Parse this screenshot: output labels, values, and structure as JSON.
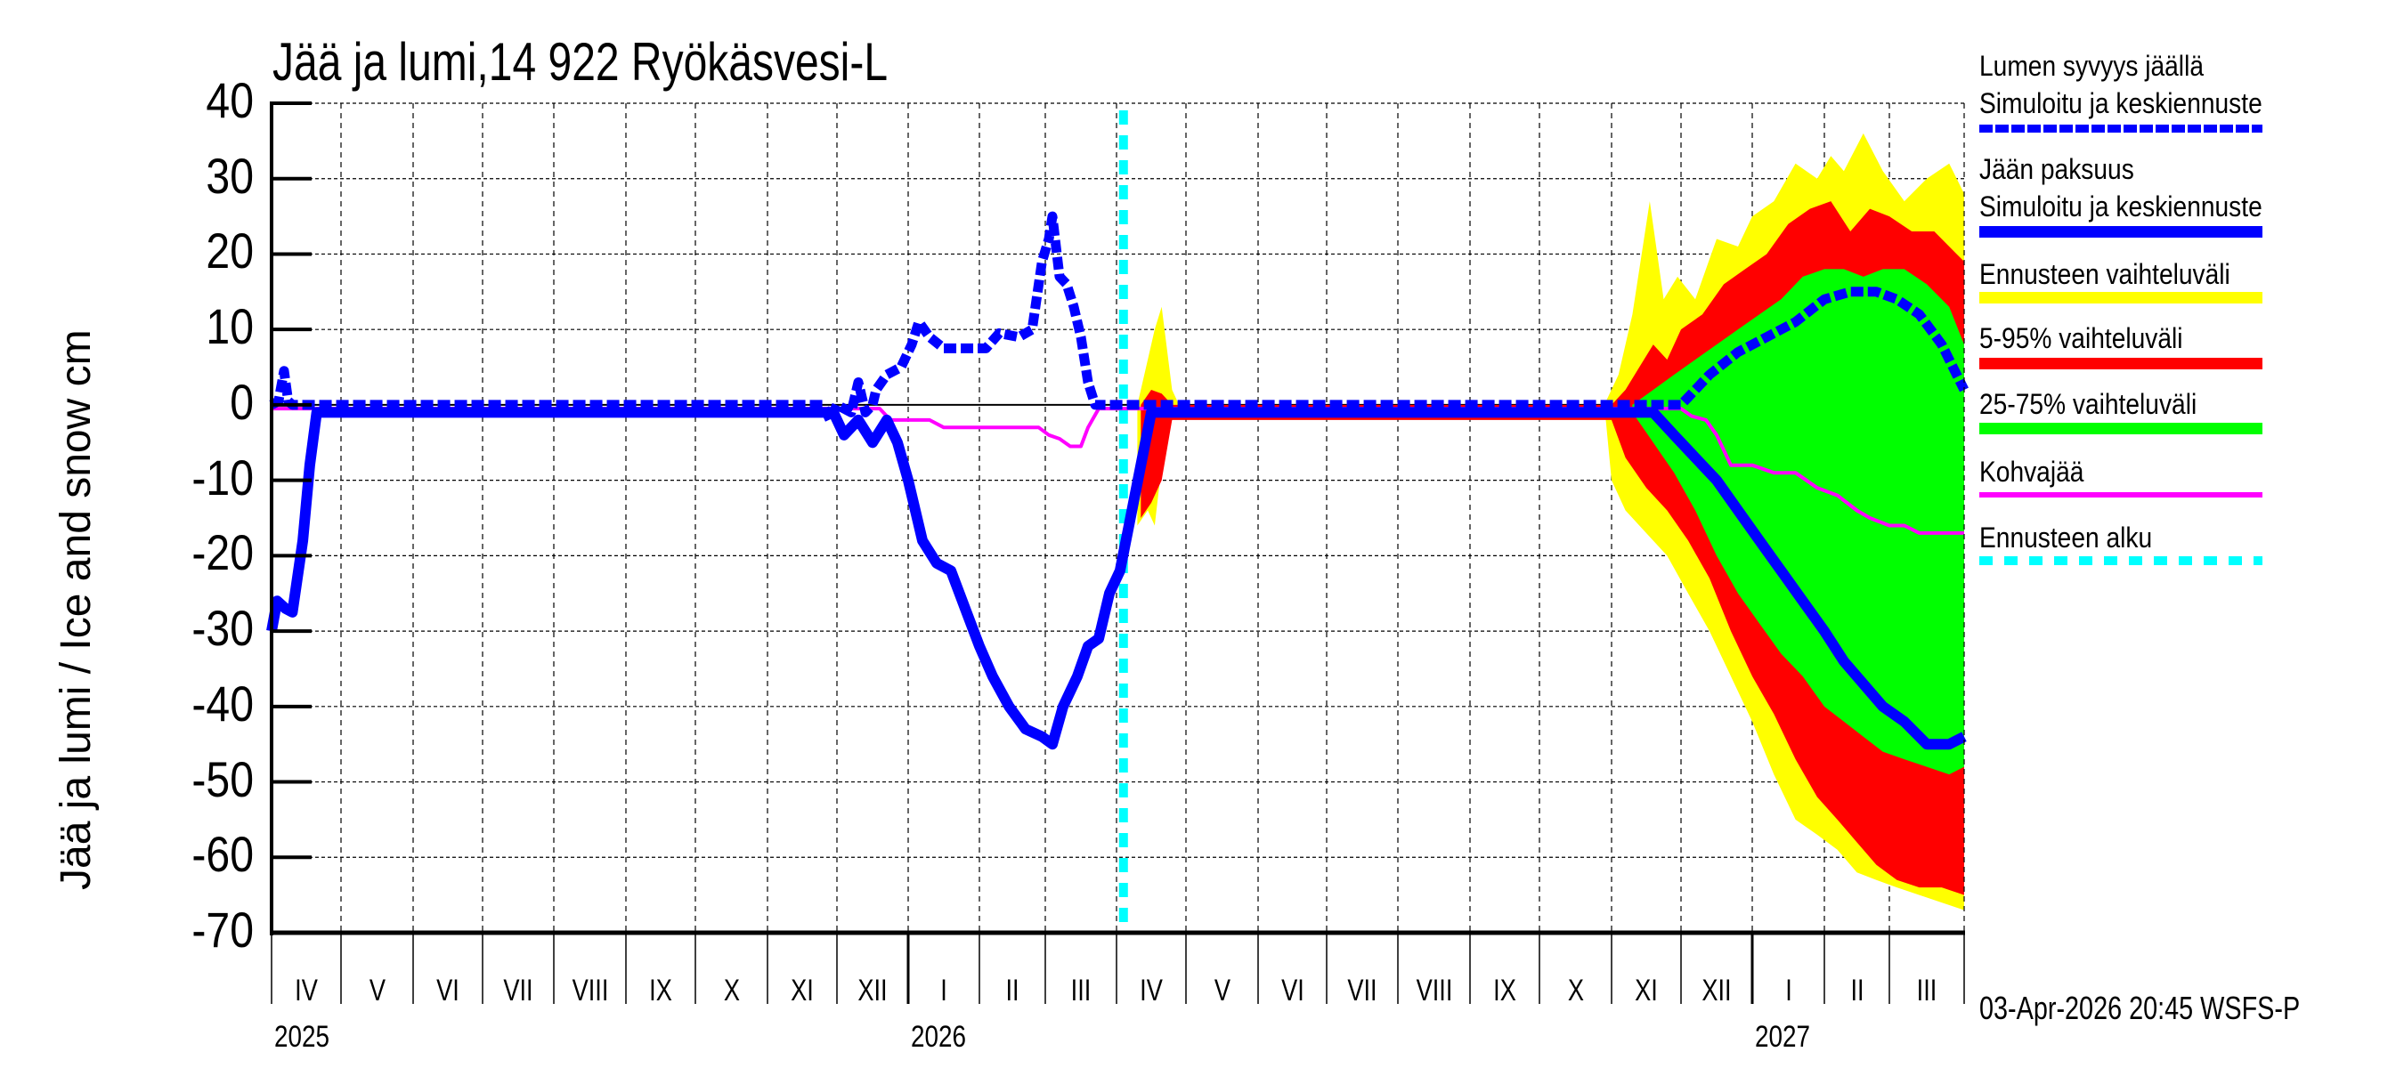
{
  "chart_data": {
    "type": "line",
    "title": "Jää ja lumi,14 922 Ryökäsvesi-L",
    "xlabel": "",
    "ylabel": "Jää ja lumi / Ice and snow    cm",
    "ylim": [
      -70,
      40
    ],
    "yticks": [
      40,
      30,
      20,
      10,
      0,
      -10,
      -20,
      -30,
      -40,
      -50,
      -60,
      -70
    ],
    "grid": true,
    "x_unit": "months since 1-Apr-2025",
    "xlim": [
      0,
      24
    ],
    "month_labels": [
      "IV",
      "V",
      "VI",
      "VII",
      "VIII",
      "IX",
      "X",
      "XI",
      "XII",
      "I",
      "II",
      "III",
      "IV",
      "V",
      "VI",
      "VII",
      "VIII",
      "IX",
      "X",
      "XI",
      "XII",
      "I",
      "II",
      "III"
    ],
    "year_labels": [
      {
        "label": "2025",
        "month_index": 0
      },
      {
        "label": "2026",
        "month_index": 9
      },
      {
        "label": "2027",
        "month_index": 21
      }
    ],
    "forecast_start": 12.1,
    "series": [
      {
        "name": "Lumen syvyys jäällä — Simuloitu ja keskiennuste",
        "key": "snow",
        "color": "#0000ff",
        "style": "dashed",
        "points": [
          [
            0,
            0
          ],
          [
            0.1,
            0.5
          ],
          [
            0.18,
            4.5
          ],
          [
            0.24,
            0.5
          ],
          [
            0.3,
            0
          ],
          [
            7.8,
            0
          ],
          [
            7.9,
            -2
          ],
          [
            8.0,
            0
          ],
          [
            8.2,
            -1
          ],
          [
            8.3,
            3
          ],
          [
            8.4,
            -1
          ],
          [
            8.5,
            0
          ],
          [
            8.55,
            2
          ],
          [
            8.7,
            4
          ],
          [
            8.9,
            5
          ],
          [
            9.05,
            8
          ],
          [
            9.15,
            11
          ],
          [
            9.3,
            9
          ],
          [
            9.5,
            7.5
          ],
          [
            9.8,
            7.5
          ],
          [
            10.1,
            7.5
          ],
          [
            10.3,
            9.5
          ],
          [
            10.6,
            9
          ],
          [
            10.8,
            10
          ],
          [
            10.95,
            19
          ],
          [
            11.05,
            22
          ],
          [
            11.1,
            25
          ],
          [
            11.2,
            17
          ],
          [
            11.3,
            16
          ],
          [
            11.4,
            13
          ],
          [
            11.5,
            9
          ],
          [
            11.6,
            3
          ],
          [
            11.7,
            0
          ],
          [
            18.9,
            0
          ],
          [
            19.5,
            0
          ],
          [
            20.0,
            0
          ],
          [
            20.4,
            4
          ],
          [
            20.8,
            7
          ],
          [
            21.2,
            9
          ],
          [
            21.6,
            11
          ],
          [
            22.0,
            14
          ],
          [
            22.4,
            15
          ],
          [
            22.8,
            15
          ],
          [
            23.1,
            14
          ],
          [
            23.4,
            12
          ],
          [
            23.7,
            8
          ],
          [
            23.9,
            4
          ],
          [
            24,
            2
          ]
        ]
      },
      {
        "name": "Jään paksuus — Simuloitu ja keskiennuste",
        "key": "ice",
        "color": "#0000ff",
        "style": "solid",
        "points": [
          [
            0,
            -30
          ],
          [
            0.08,
            -26
          ],
          [
            0.2,
            -27
          ],
          [
            0.3,
            -27.5
          ],
          [
            0.45,
            -18
          ],
          [
            0.55,
            -8
          ],
          [
            0.65,
            -1
          ],
          [
            7.95,
            -1
          ],
          [
            8.1,
            -4
          ],
          [
            8.3,
            -2
          ],
          [
            8.5,
            -5
          ],
          [
            8.7,
            -2
          ],
          [
            8.85,
            -5
          ],
          [
            9.0,
            -10
          ],
          [
            9.2,
            -18
          ],
          [
            9.4,
            -21
          ],
          [
            9.6,
            -22
          ],
          [
            9.8,
            -27
          ],
          [
            10.0,
            -32
          ],
          [
            10.2,
            -36
          ],
          [
            10.45,
            -40
          ],
          [
            10.7,
            -43
          ],
          [
            10.95,
            -44
          ],
          [
            11.1,
            -45
          ],
          [
            11.25,
            -40
          ],
          [
            11.45,
            -36
          ],
          [
            11.6,
            -32
          ],
          [
            11.75,
            -31
          ],
          [
            11.9,
            -25
          ],
          [
            12.05,
            -22
          ],
          [
            12.2,
            -15
          ],
          [
            12.35,
            -8
          ],
          [
            12.5,
            -1
          ],
          [
            19.6,
            -1
          ],
          [
            19.9,
            -4
          ],
          [
            20.2,
            -7
          ],
          [
            20.5,
            -10
          ],
          [
            20.8,
            -14
          ],
          [
            21.1,
            -18
          ],
          [
            21.4,
            -22
          ],
          [
            21.7,
            -26
          ],
          [
            22.0,
            -30
          ],
          [
            22.3,
            -34
          ],
          [
            22.6,
            -37
          ],
          [
            22.9,
            -40
          ],
          [
            23.2,
            -42
          ],
          [
            23.5,
            -45
          ],
          [
            23.8,
            -45
          ],
          [
            24,
            -44
          ]
        ]
      },
      {
        "name": "Kohvajää",
        "key": "slush",
        "color": "#ff00ff",
        "style": "solid",
        "points": [
          [
            0,
            -0.5
          ],
          [
            8.6,
            -0.5
          ],
          [
            8.75,
            -2
          ],
          [
            9.3,
            -2
          ],
          [
            9.5,
            -3
          ],
          [
            10.9,
            -3
          ],
          [
            11.05,
            -4
          ],
          [
            11.2,
            -4.5
          ],
          [
            11.35,
            -5.5
          ],
          [
            11.5,
            -5.5
          ],
          [
            11.6,
            -3
          ],
          [
            11.75,
            -0.5
          ],
          [
            20.0,
            -0.5
          ],
          [
            20.15,
            -1.5
          ],
          [
            20.35,
            -2
          ],
          [
            20.5,
            -4
          ],
          [
            20.7,
            -8
          ],
          [
            21.0,
            -8
          ],
          [
            21.3,
            -9
          ],
          [
            21.6,
            -9
          ],
          [
            21.9,
            -11
          ],
          [
            22.2,
            -12
          ],
          [
            22.5,
            -14
          ],
          [
            22.7,
            -15
          ],
          [
            23.0,
            -16
          ],
          [
            23.2,
            -16
          ],
          [
            23.4,
            -17
          ],
          [
            24,
            -17
          ]
        ]
      }
    ],
    "bands": [
      {
        "name": "Ennusteen vaihteluväli",
        "color": "#ffff00",
        "upper": [
          [
            12.3,
            0
          ],
          [
            12.45,
            6
          ],
          [
            12.55,
            10
          ],
          [
            12.65,
            13
          ],
          [
            12.8,
            2
          ],
          [
            12.9,
            0
          ],
          [
            18.9,
            0
          ],
          [
            19.1,
            4
          ],
          [
            19.3,
            12
          ],
          [
            19.55,
            27
          ],
          [
            19.75,
            14
          ],
          [
            19.95,
            17
          ],
          [
            20.2,
            14
          ],
          [
            20.5,
            22
          ],
          [
            20.8,
            21
          ],
          [
            21.0,
            25
          ],
          [
            21.3,
            27
          ],
          [
            21.6,
            32
          ],
          [
            21.9,
            30
          ],
          [
            22.1,
            33
          ],
          [
            22.3,
            31
          ],
          [
            22.6,
            36
          ],
          [
            22.9,
            31
          ],
          [
            23.2,
            27
          ],
          [
            23.5,
            30
          ],
          [
            23.8,
            32
          ],
          [
            24,
            28
          ]
        ],
        "lower": [
          [
            12.3,
            -16
          ],
          [
            12.45,
            -14
          ],
          [
            12.55,
            -16
          ],
          [
            12.7,
            -4
          ],
          [
            12.9,
            0
          ],
          [
            18.9,
            0
          ],
          [
            19.0,
            -10
          ],
          [
            19.2,
            -14
          ],
          [
            19.5,
            -17
          ],
          [
            19.8,
            -20
          ],
          [
            20.1,
            -25
          ],
          [
            20.4,
            -30
          ],
          [
            20.7,
            -36
          ],
          [
            21.0,
            -42
          ],
          [
            21.3,
            -49
          ],
          [
            21.6,
            -55
          ],
          [
            21.9,
            -57
          ],
          [
            22.2,
            -59
          ],
          [
            22.5,
            -62
          ],
          [
            22.8,
            -63
          ],
          [
            23.1,
            -64
          ],
          [
            23.4,
            -65
          ],
          [
            23.7,
            -66
          ],
          [
            24,
            -67
          ]
        ]
      },
      {
        "name": "5-95% vaihteluväli",
        "color": "#ff0000",
        "upper": [
          [
            12.35,
            0
          ],
          [
            12.5,
            2
          ],
          [
            12.65,
            1.5
          ],
          [
            12.8,
            0
          ],
          [
            19.0,
            0
          ],
          [
            19.2,
            2
          ],
          [
            19.4,
            5
          ],
          [
            19.6,
            8
          ],
          [
            19.8,
            6
          ],
          [
            20.0,
            10
          ],
          [
            20.3,
            12
          ],
          [
            20.6,
            16
          ],
          [
            20.9,
            18
          ],
          [
            21.2,
            20
          ],
          [
            21.5,
            24
          ],
          [
            21.8,
            26
          ],
          [
            22.1,
            27
          ],
          [
            22.4,
            23
          ],
          [
            22.7,
            26
          ],
          [
            23.0,
            25
          ],
          [
            23.3,
            23
          ],
          [
            23.6,
            23
          ],
          [
            23.9,
            20
          ],
          [
            24,
            19
          ]
        ],
        "lower": [
          [
            12.35,
            -15
          ],
          [
            12.5,
            -13
          ],
          [
            12.65,
            -10
          ],
          [
            12.8,
            -2
          ],
          [
            19.0,
            -2
          ],
          [
            19.2,
            -7
          ],
          [
            19.5,
            -11
          ],
          [
            19.8,
            -14
          ],
          [
            20.1,
            -18
          ],
          [
            20.4,
            -23
          ],
          [
            20.7,
            -30
          ],
          [
            21.0,
            -36
          ],
          [
            21.3,
            -41
          ],
          [
            21.6,
            -47
          ],
          [
            21.9,
            -52
          ],
          [
            22.2,
            -55
          ],
          [
            22.5,
            -58
          ],
          [
            22.8,
            -61
          ],
          [
            23.1,
            -63
          ],
          [
            23.4,
            -64
          ],
          [
            23.7,
            -64
          ],
          [
            24,
            -65
          ]
        ]
      },
      {
        "name": "25-75% vaihteluväli",
        "color": "#00ff00",
        "upper": [
          [
            19.3,
            0
          ],
          [
            19.6,
            2
          ],
          [
            19.9,
            4
          ],
          [
            20.2,
            6
          ],
          [
            20.5,
            8
          ],
          [
            20.8,
            10
          ],
          [
            21.1,
            12
          ],
          [
            21.4,
            14
          ],
          [
            21.7,
            17
          ],
          [
            22.0,
            18
          ],
          [
            22.3,
            18
          ],
          [
            22.6,
            17
          ],
          [
            22.9,
            18
          ],
          [
            23.2,
            18
          ],
          [
            23.5,
            16
          ],
          [
            23.8,
            13
          ],
          [
            24,
            8
          ]
        ],
        "lower": [
          [
            19.3,
            -1
          ],
          [
            19.6,
            -5
          ],
          [
            19.9,
            -9
          ],
          [
            20.2,
            -14
          ],
          [
            20.5,
            -20
          ],
          [
            20.8,
            -25
          ],
          [
            21.1,
            -29
          ],
          [
            21.4,
            -33
          ],
          [
            21.7,
            -36
          ],
          [
            22.0,
            -40
          ],
          [
            22.3,
            -42
          ],
          [
            22.6,
            -44
          ],
          [
            22.9,
            -46
          ],
          [
            23.2,
            -47
          ],
          [
            23.5,
            -48
          ],
          [
            23.8,
            -49
          ],
          [
            24,
            -48
          ]
        ]
      }
    ]
  },
  "legend": {
    "items": [
      {
        "label_1": "Lumen syvyys jäällä",
        "label_2": "Simuloitu ja keskiennuste",
        "color": "#0000ff",
        "style": "dashed"
      },
      {
        "label_1": "Jään paksuus",
        "label_2": "Simuloitu ja keskiennuste",
        "color": "#0000ff",
        "style": "solid"
      },
      {
        "label_1": "Ennusteen vaihteluväli",
        "color": "#ffff00",
        "style": "band"
      },
      {
        "label_1": "5-95% vaihteluväli",
        "color": "#ff0000",
        "style": "band"
      },
      {
        "label_1": "25-75% vaihteluväli",
        "color": "#00ff00",
        "style": "band"
      },
      {
        "label_1": "Kohvajää",
        "color": "#ff00ff",
        "style": "thin"
      },
      {
        "label_1": "Ennusteen alku",
        "color": "#00ffff",
        "style": "dotted"
      }
    ]
  },
  "footer": {
    "timestamp": "03-Apr-2026 20:45 WSFS-P"
  }
}
